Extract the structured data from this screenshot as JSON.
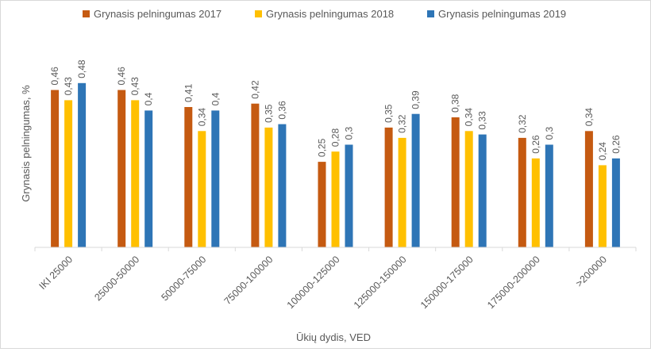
{
  "chart_data": {
    "type": "bar",
    "title": "",
    "xlabel": "Ūkių dydis, VED",
    "ylabel": "Grynasis pelningumas, %",
    "ylim": [
      0,
      0.5
    ],
    "grid": false,
    "legend_position": "top",
    "categories": [
      "IKI 25000",
      "25000-50000",
      "50000-75000",
      "75000-100000",
      "100000-125000",
      "125000-150000",
      "150000-175000",
      "175000-200000",
      ">200000"
    ],
    "series": [
      {
        "name": "Grynasis pelningumas 2017",
        "color": "#c55a11",
        "values": [
          0.46,
          0.46,
          0.41,
          0.42,
          0.25,
          0.35,
          0.38,
          0.32,
          0.34
        ],
        "labels": [
          "0,46",
          "0,46",
          "0,41",
          "0,42",
          "0,25",
          "0,35",
          "0,38",
          "0,32",
          "0,34"
        ]
      },
      {
        "name": "Grynasis pelningumas 2018",
        "color": "#ffc000",
        "values": [
          0.43,
          0.43,
          0.34,
          0.35,
          0.28,
          0.32,
          0.34,
          0.26,
          0.24
        ],
        "labels": [
          "0,43",
          "0,43",
          "0,34",
          "0,35",
          "0,28",
          "0,32",
          "0,34",
          "0,26",
          "0,24"
        ]
      },
      {
        "name": "Grynasis pelningumas 2019",
        "color": "#2e75b6",
        "values": [
          0.48,
          0.4,
          0.4,
          0.36,
          0.3,
          0.39,
          0.33,
          0.3,
          0.26
        ],
        "labels": [
          "0,48",
          "0,4",
          "0,4",
          "0,36",
          "0,3",
          "0,39",
          "0,33",
          "0,3",
          "0,26"
        ]
      }
    ]
  }
}
